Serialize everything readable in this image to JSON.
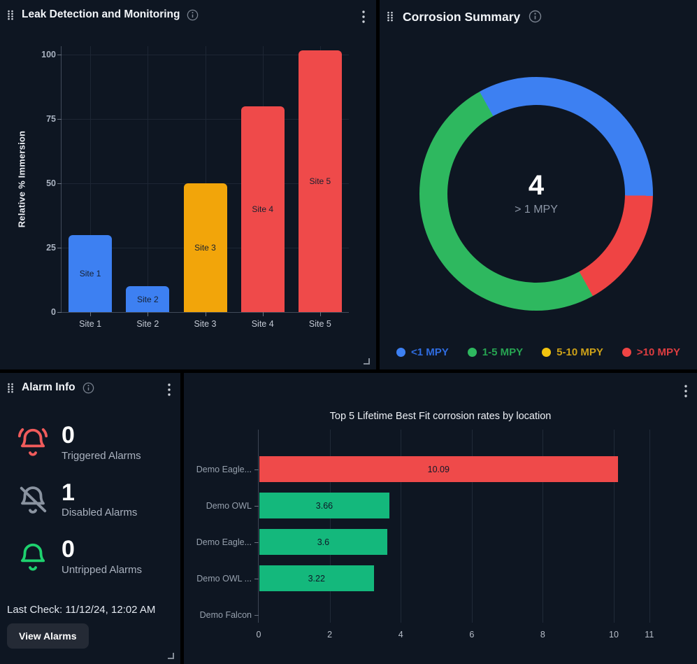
{
  "leak": {
    "title": "Leak Detection and Monitoring",
    "chart_data": {
      "type": "bar",
      "categories": [
        "Site 1",
        "Site 2",
        "Site 3",
        "Site 4",
        "Site 5"
      ],
      "values": [
        30,
        10,
        50,
        80,
        101.6
      ],
      "bar_labels": [
        "Site 1",
        "Site 2",
        "Site 3",
        "Site 4",
        "Site 5"
      ],
      "bar_colors": [
        "#3d80f2",
        "#3d80f2",
        "#f2a50a",
        "#ef4a4a",
        "#ef4a4a"
      ],
      "ylabel": "Relative % Immersion",
      "yticks": [
        0,
        25,
        50,
        75,
        100
      ],
      "ylim": [
        0,
        103
      ],
      "grid": true
    }
  },
  "corrosion": {
    "title": "Corrosion Summary",
    "chart_data": {
      "type": "pie",
      "donut": true,
      "center_value": "4",
      "center_label": "> 1 MPY",
      "segments": [
        {
          "label": "<1 MPY",
          "value": 2,
          "color": "#3d80f2",
          "text_color": "#2f6ce0"
        },
        {
          "label": "1-5 MPY",
          "value": 3,
          "color": "#2eb85f",
          "text_color": "#27a452"
        },
        {
          "label": "5-10 MPY",
          "value": 0,
          "color": "#f2c40f",
          "text_color": "#cda118"
        },
        {
          "label": ">10 MPY",
          "value": 1,
          "color": "#ef4444",
          "text_color": "#dd3d40"
        }
      ],
      "ring_order": [
        0,
        3,
        1,
        2
      ],
      "start_angle_deg": -29,
      "legend_position": "bottom"
    }
  },
  "alarm": {
    "title": "Alarm Info",
    "rows": [
      {
        "icon": "bell-ring-icon",
        "color": "#f05b5b",
        "count": "0",
        "label": "Triggered Alarms"
      },
      {
        "icon": "bell-off-icon",
        "color": "#8a93a0",
        "count": "1",
        "label": "Disabled Alarms"
      },
      {
        "icon": "bell-icon",
        "color": "#1ed16e",
        "count": "0",
        "label": "Untripped Alarms"
      }
    ],
    "last_check": "Last Check: 11/12/24, 12:02 AM",
    "view_alarms_label": "View Alarms"
  },
  "top5": {
    "chart_data": {
      "type": "bar",
      "orientation": "horizontal",
      "title": "Top 5 Lifetime Best Fit corrosion rates by location",
      "categories": [
        "Demo Eagle...",
        "Demo OWL",
        "Demo Eagle...",
        "Demo OWL ...",
        "Demo Falcon"
      ],
      "values": [
        10.09,
        3.66,
        3.6,
        3.22,
        0
      ],
      "value_labels": [
        "10.09",
        "3.66",
        "3.6",
        "3.22",
        ""
      ],
      "bar_colors": [
        "#ef4a4a",
        "#14b87c",
        "#14b87c",
        "#14b87c",
        "#14b87c"
      ],
      "xticks": [
        0,
        2,
        4,
        6,
        8,
        10,
        11
      ],
      "xlim": [
        0,
        11.28
      ],
      "grid": true
    }
  }
}
